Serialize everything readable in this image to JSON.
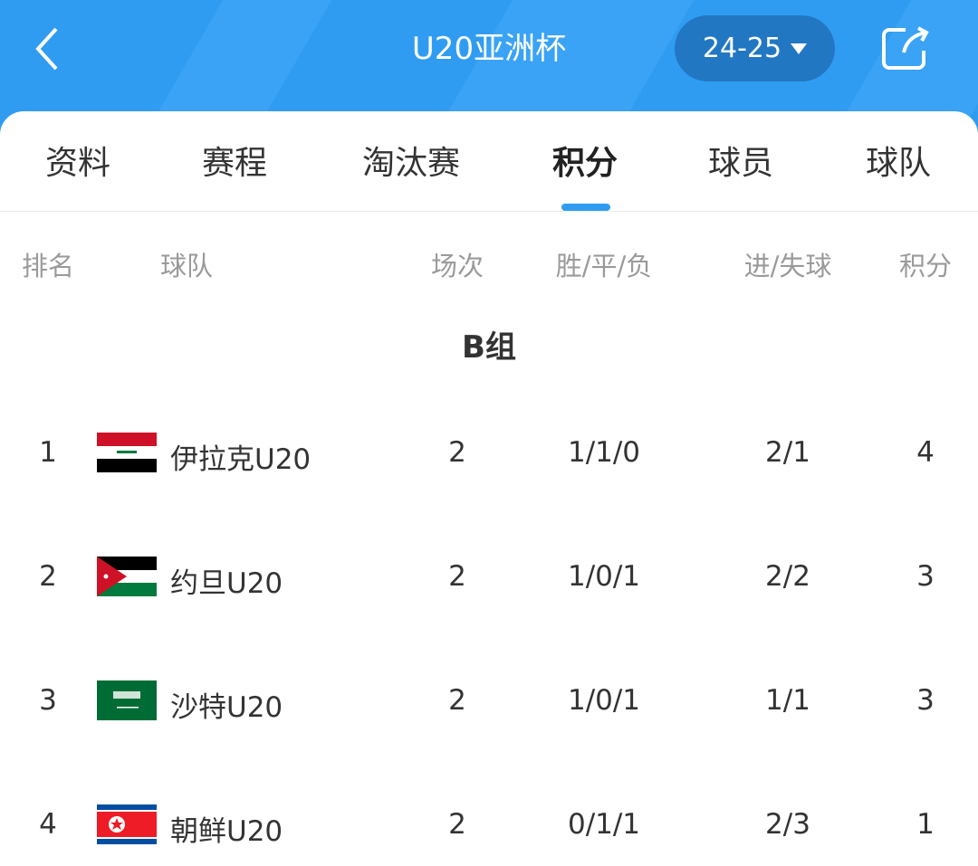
{
  "header": {
    "title": "U20亚洲杯",
    "season": "24-25",
    "back_icon": "chevron-left-icon",
    "share_icon": "share-icon",
    "color": "#2f9cf1"
  },
  "tabs": [
    {
      "label": "资料"
    },
    {
      "label": "赛程"
    },
    {
      "label": "淘汰赛"
    },
    {
      "label": "积分",
      "active": true
    },
    {
      "label": "球员"
    },
    {
      "label": "球队"
    }
  ],
  "columns": {
    "rank": "排名",
    "team": "球队",
    "played": "场次",
    "wdl": "胜/平/负",
    "goals": "进/失球",
    "points": "积分"
  },
  "group": "B组",
  "rows": [
    {
      "rank": "1",
      "flag": "iraq",
      "team": "伊拉克U20",
      "played": "2",
      "wdl": "1/1/0",
      "goals": "2/1",
      "points": "4"
    },
    {
      "rank": "2",
      "flag": "jordan",
      "team": "约旦U20",
      "played": "2",
      "wdl": "1/0/1",
      "goals": "2/2",
      "points": "3"
    },
    {
      "rank": "3",
      "flag": "saudi-arabia",
      "team": "沙特U20",
      "played": "2",
      "wdl": "1/0/1",
      "goals": "1/1",
      "points": "3"
    },
    {
      "rank": "4",
      "flag": "north-korea",
      "team": "朝鲜U20",
      "played": "2",
      "wdl": "0/1/1",
      "goals": "2/3",
      "points": "1"
    }
  ]
}
